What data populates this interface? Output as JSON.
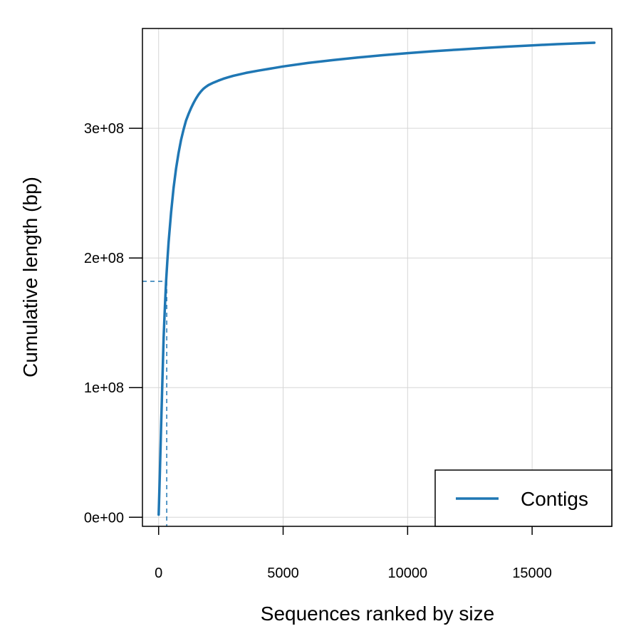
{
  "chart_data": {
    "type": "line",
    "xlabel": "Sequences ranked by size",
    "ylabel": "Cumulative length (bp)",
    "xlim": [
      -650,
      18200
    ],
    "ylim": [
      -7000000,
      377000000
    ],
    "x_ticks": [
      0,
      5000,
      10000,
      15000
    ],
    "x_tick_labels": [
      "0",
      "5000",
      "10000",
      "15000"
    ],
    "y_ticks": [
      0,
      100000000,
      200000000,
      300000000
    ],
    "y_tick_labels": [
      "0e+00",
      "1e+08",
      "2e+08",
      "3e+08"
    ],
    "grid": true,
    "legend_position": "bottom-right",
    "series": [
      {
        "name": "Contigs",
        "color": "#1f77b4",
        "x": [
          1,
          50,
          100,
          150,
          200,
          250,
          300,
          350,
          400,
          500,
          600,
          700,
          800,
          900,
          1000,
          1100,
          1200,
          1300,
          1400,
          1500,
          1600,
          1700,
          1800,
          1900,
          2000,
          2200,
          2400,
          2600,
          2800,
          3000,
          3500,
          4000,
          5000,
          6000,
          7000,
          8000,
          9000,
          10000,
          11000,
          12000,
          13000,
          14000,
          15000,
          16000,
          17000,
          17500
        ],
        "y": [
          2000000,
          35000000,
          70000000,
          105000000,
          138000000,
          162000000,
          182000000,
          198000000,
          212000000,
          235000000,
          254000000,
          269000000,
          281000000,
          291000000,
          299000000,
          306000000,
          311000000,
          315500000,
          319500000,
          323000000,
          326000000,
          328500000,
          330500000,
          332000000,
          333300000,
          335200000,
          336800000,
          338200000,
          339400000,
          340500000,
          342700000,
          344500000,
          347700000,
          350400000,
          352600000,
          354600000,
          356400000,
          358000000,
          359400000,
          360700000,
          361900000,
          363000000,
          364000000,
          364900000,
          365700000,
          366000000
        ]
      }
    ],
    "annotations": {
      "cutoff_x": 325,
      "cutoff_y": 182000000,
      "style": "dashed"
    }
  }
}
